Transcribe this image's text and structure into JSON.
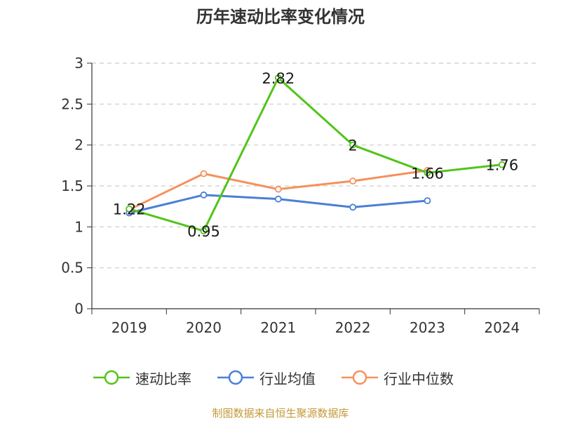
{
  "title": "历年速动比率变化情况",
  "source": "制图数据来自恒生聚源数据库",
  "chart_data": {
    "type": "line",
    "title": "历年速动比率变化情况",
    "categories": [
      "2019",
      "2020",
      "2021",
      "2022",
      "2023",
      "2024"
    ],
    "y_ticks": [
      "0",
      "0.5",
      "1",
      "1.5",
      "2",
      "2.5",
      "3"
    ],
    "ylim": [
      0,
      3
    ],
    "grid": true,
    "legend_position": "bottom",
    "series": [
      {
        "name": "速动比率",
        "color": "#52c41a",
        "values": [
          1.22,
          0.95,
          2.82,
          2,
          1.66,
          1.76
        ],
        "labels": [
          "1.22",
          "0.95",
          "2.82",
          "2",
          "1.66",
          "1.76"
        ]
      },
      {
        "name": "行业均值",
        "color": "#4a7fd6",
        "values": [
          1.17,
          1.39,
          1.34,
          1.24,
          1.32,
          null
        ]
      },
      {
        "name": "行业中位数",
        "color": "#f5915c",
        "values": [
          1.21,
          1.65,
          1.46,
          1.56,
          1.69,
          null
        ]
      }
    ]
  }
}
